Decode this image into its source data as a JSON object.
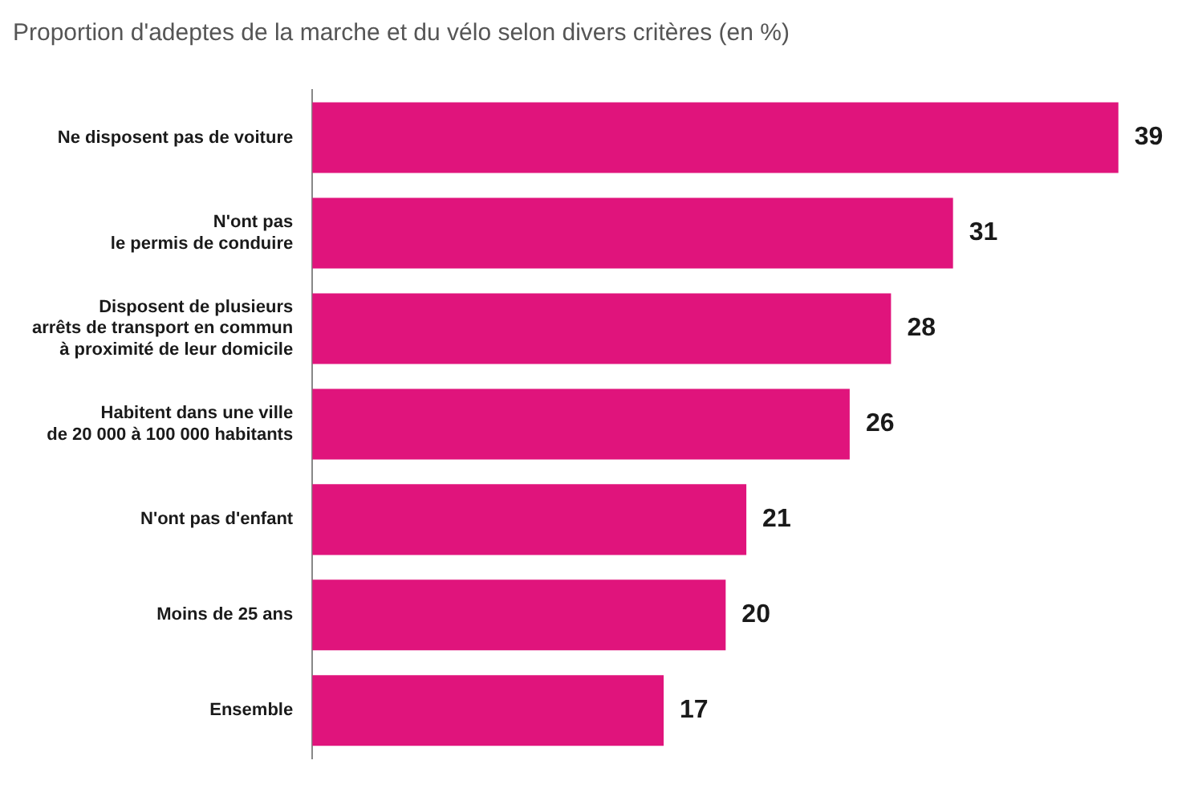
{
  "chart_data": {
    "type": "bar",
    "orientation": "horizontal",
    "title": "Proportion d'adeptes de la marche et du vélo selon divers critères (en %)",
    "categories": [
      "Ne disposent pas de voiture",
      "N'ont pas\nle permis de conduire",
      "Disposent de plusieurs\narrêts de transport en commun\nà proximité de leur domicile",
      "Habitent dans une ville\nde 20 000 à 100 000 habitants",
      "N'ont pas d'enfant",
      "Moins de 25 ans",
      "Ensemble"
    ],
    "values": [
      39,
      31,
      28,
      26,
      21,
      20,
      17
    ],
    "color": "#e0147c",
    "data_labels": true,
    "grid": false,
    "legend": false
  }
}
